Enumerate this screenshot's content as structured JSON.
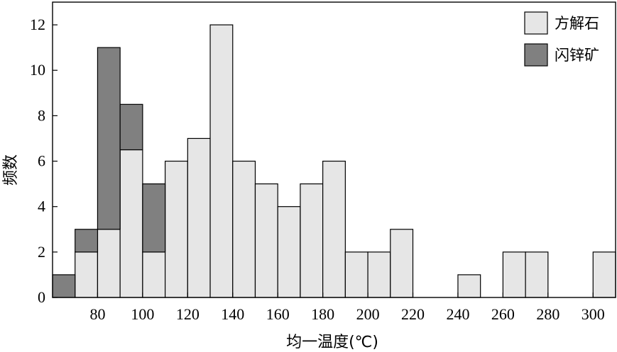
{
  "chart_data": {
    "type": "bar",
    "stacked": true,
    "xlabel": "均一温度(℃)",
    "ylabel": "频数",
    "xlim": [
      60,
      310
    ],
    "ylim": [
      0,
      13
    ],
    "bin_width": 10,
    "x_ticks": [
      80,
      100,
      120,
      140,
      160,
      180,
      200,
      220,
      240,
      260,
      280,
      300
    ],
    "y_ticks": [
      0,
      2,
      4,
      6,
      8,
      10,
      12
    ],
    "legend_position": "top-right",
    "grid": false,
    "series": [
      {
        "name": "方解石",
        "color": "#e6e6e6",
        "points": [
          {
            "x": 70,
            "y": 2
          },
          {
            "x": 80,
            "y": 3
          },
          {
            "x": 90,
            "y": 6.5
          },
          {
            "x": 100,
            "y": 2
          },
          {
            "x": 110,
            "y": 6
          },
          {
            "x": 120,
            "y": 7
          },
          {
            "x": 130,
            "y": 12
          },
          {
            "x": 140,
            "y": 6
          },
          {
            "x": 150,
            "y": 5
          },
          {
            "x": 160,
            "y": 4
          },
          {
            "x": 170,
            "y": 5
          },
          {
            "x": 180,
            "y": 6
          },
          {
            "x": 190,
            "y": 2
          },
          {
            "x": 200,
            "y": 2
          },
          {
            "x": 210,
            "y": 3
          },
          {
            "x": 240,
            "y": 1
          },
          {
            "x": 260,
            "y": 2
          },
          {
            "x": 270,
            "y": 2
          },
          {
            "x": 300,
            "y": 2
          }
        ]
      },
      {
        "name": "闪锌矿",
        "color": "#808080",
        "points": [
          {
            "x": 60,
            "y": 1
          },
          {
            "x": 70,
            "y": 1
          },
          {
            "x": 80,
            "y": 8
          },
          {
            "x": 90,
            "y": 2
          },
          {
            "x": 100,
            "y": 3
          }
        ]
      }
    ]
  }
}
